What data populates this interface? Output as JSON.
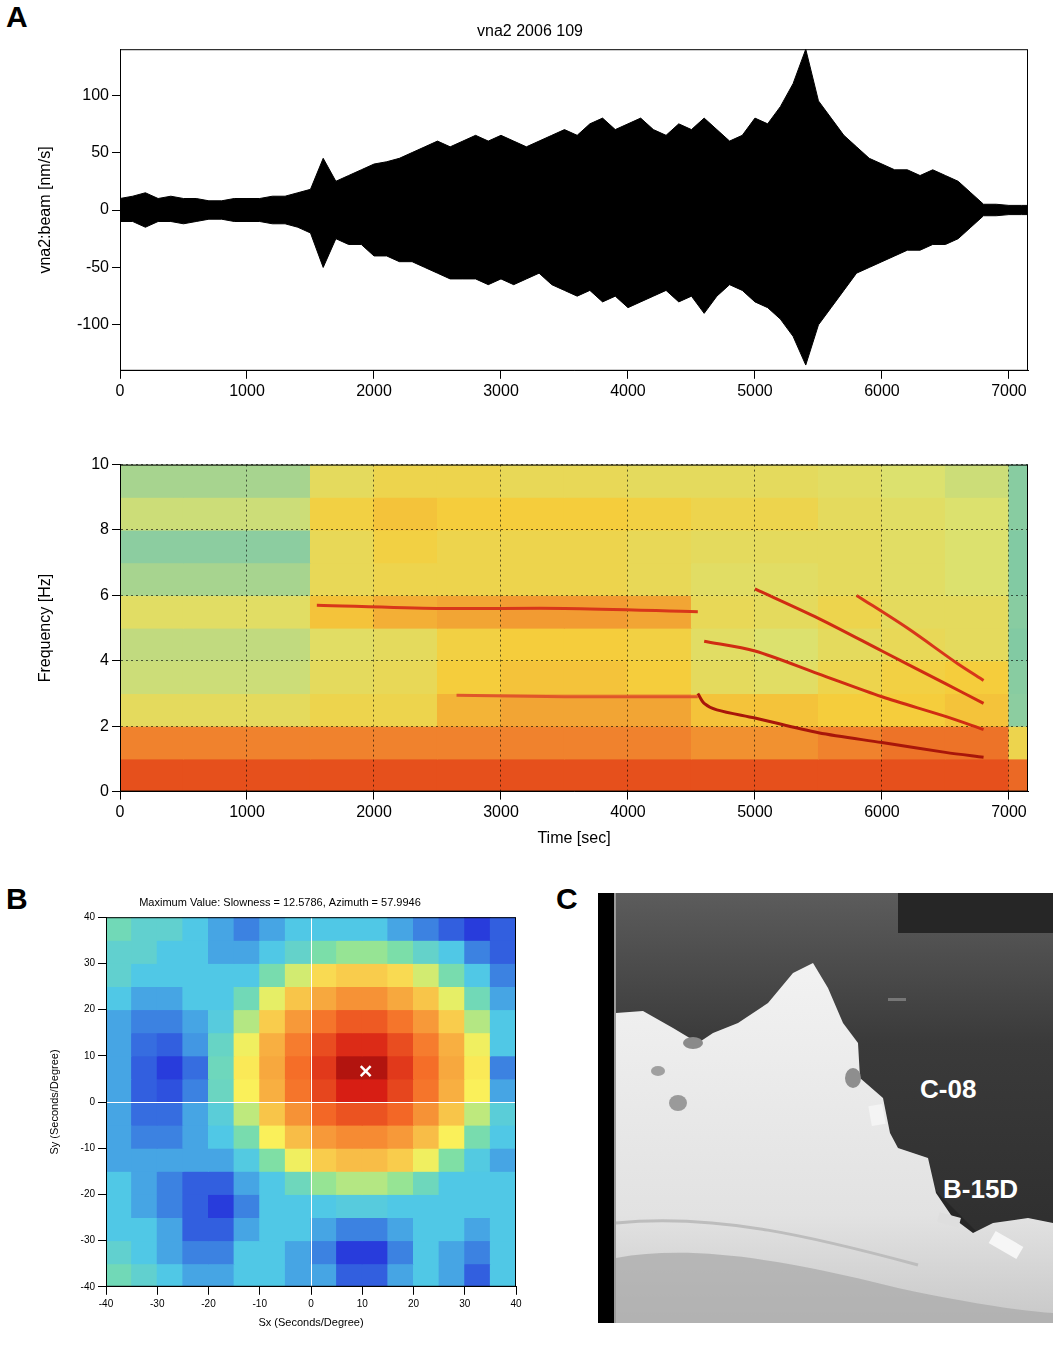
{
  "panel_labels": [
    "A",
    "B",
    "C"
  ],
  "chart_data": [
    {
      "type": "envelope",
      "title": "vna2 2006 109",
      "y_label": "vna2:beam [nm/s]",
      "x": [
        0,
        100,
        200,
        300,
        400,
        500,
        600,
        700,
        800,
        900,
        1000,
        1100,
        1200,
        1300,
        1400,
        1500,
        1600,
        1700,
        1800,
        1900,
        2000,
        2100,
        2200,
        2300,
        2400,
        2500,
        2600,
        2700,
        2800,
        2900,
        3000,
        3100,
        3200,
        3300,
        3400,
        3500,
        3600,
        3700,
        3800,
        3900,
        4000,
        4100,
        4200,
        4300,
        4400,
        4500,
        4600,
        4700,
        4800,
        4900,
        5000,
        5100,
        5200,
        5300,
        5400,
        5500,
        5600,
        5700,
        5800,
        5900,
        6000,
        6100,
        6200,
        6300,
        6400,
        6500,
        6600,
        6700,
        6800,
        6900,
        7000,
        7100,
        7150
      ],
      "series": [
        {
          "color": "#000000",
          "values": [
            10,
            12,
            15,
            10,
            12,
            10,
            10,
            8,
            8,
            10,
            10,
            10,
            12,
            12,
            15,
            18,
            45,
            25,
            30,
            35,
            40,
            42,
            45,
            50,
            55,
            60,
            55,
            60,
            65,
            60,
            65,
            60,
            55,
            60,
            65,
            70,
            65,
            75,
            80,
            70,
            75,
            80,
            70,
            65,
            75,
            70,
            80,
            70,
            60,
            65,
            80,
            75,
            90,
            110,
            140,
            95,
            80,
            65,
            55,
            45,
            40,
            35,
            35,
            30,
            35,
            30,
            25,
            15,
            5,
            5,
            4,
            4,
            4
          ]
        },
        {
          "color": "#000000",
          "values": [
            -10,
            -10,
            -15,
            -10,
            -10,
            -12,
            -10,
            -8,
            -8,
            -10,
            -10,
            -10,
            -12,
            -12,
            -15,
            -20,
            -50,
            -25,
            -30,
            -30,
            -40,
            -40,
            -45,
            -45,
            -50,
            -55,
            -60,
            -60,
            -60,
            -65,
            -60,
            -65,
            -60,
            -55,
            -65,
            -70,
            -75,
            -70,
            -80,
            -75,
            -85,
            -80,
            -75,
            -70,
            -80,
            -75,
            -90,
            -75,
            -65,
            -70,
            -80,
            -85,
            -95,
            -110,
            -135,
            -100,
            -85,
            -70,
            -55,
            -50,
            -45,
            -40,
            -35,
            -35,
            -30,
            -30,
            -25,
            -15,
            -5,
            -5,
            -4,
            -4,
            -4
          ]
        }
      ],
      "xlim": [
        0,
        7150
      ],
      "xticks": [
        0,
        1000,
        2000,
        3000,
        4000,
        5000,
        6000,
        7000
      ],
      "ylim": [
        -140,
        140
      ],
      "yticks": [
        -100,
        -50,
        0,
        50,
        100
      ],
      "grid": false
    },
    {
      "type": "heatmap",
      "x_label": "Time [sec]",
      "y_label": "Frequency [Hz]",
      "x_bins": [
        0,
        500,
        1000,
        1500,
        2000,
        2500,
        3000,
        3500,
        4000,
        4500,
        5000,
        5500,
        6000,
        6500,
        7000,
        7150
      ],
      "y_bins": [
        0,
        1,
        2,
        3,
        4,
        5,
        6,
        7,
        8,
        9,
        10
      ],
      "z": [
        [
          0.85,
          0.85,
          0.85,
          0.85,
          0.85,
          0.85,
          0.85,
          0.85,
          0.85,
          0.85,
          0.85,
          0.85,
          0.85,
          0.85,
          0.8
        ],
        [
          0.75,
          0.75,
          0.75,
          0.75,
          0.75,
          0.75,
          0.75,
          0.75,
          0.75,
          0.72,
          0.72,
          0.75,
          0.78,
          0.78,
          0.55
        ],
        [
          0.5,
          0.5,
          0.5,
          0.55,
          0.55,
          0.65,
          0.68,
          0.68,
          0.68,
          0.62,
          0.62,
          0.6,
          0.6,
          0.62,
          0.3
        ],
        [
          0.42,
          0.42,
          0.42,
          0.5,
          0.52,
          0.6,
          0.62,
          0.62,
          0.6,
          0.5,
          0.48,
          0.55,
          0.58,
          0.6,
          0.28
        ],
        [
          0.4,
          0.4,
          0.4,
          0.48,
          0.5,
          0.58,
          0.6,
          0.6,
          0.58,
          0.48,
          0.45,
          0.5,
          0.52,
          0.5,
          0.25
        ],
        [
          0.48,
          0.48,
          0.48,
          0.62,
          0.66,
          0.68,
          0.7,
          0.7,
          0.68,
          0.52,
          0.5,
          0.55,
          0.5,
          0.5,
          0.28
        ],
        [
          0.35,
          0.35,
          0.35,
          0.52,
          0.55,
          0.55,
          0.55,
          0.55,
          0.52,
          0.48,
          0.48,
          0.5,
          0.48,
          0.45,
          0.25
        ],
        [
          0.3,
          0.3,
          0.3,
          0.52,
          0.58,
          0.55,
          0.55,
          0.55,
          0.52,
          0.5,
          0.5,
          0.5,
          0.48,
          0.45,
          0.25
        ],
        [
          0.42,
          0.42,
          0.42,
          0.58,
          0.62,
          0.6,
          0.6,
          0.6,
          0.58,
          0.55,
          0.55,
          0.5,
          0.48,
          0.45,
          0.28
        ],
        [
          0.35,
          0.35,
          0.35,
          0.5,
          0.55,
          0.55,
          0.52,
          0.52,
          0.5,
          0.5,
          0.5,
          0.48,
          0.45,
          0.42,
          0.28
        ]
      ],
      "zlim": [
        0,
        1
      ],
      "series": [
        {
          "color": "#d8361a",
          "x": [
            1550,
            2500,
            3500,
            4550
          ],
          "values": [
            5.7,
            5.6,
            5.6,
            5.5
          ]
        },
        {
          "color": "#e0562a",
          "x": [
            2650,
            3500,
            4550
          ],
          "values": [
            2.95,
            2.9,
            2.9
          ]
        },
        {
          "color": "#a8160a",
          "x": [
            4550,
            4600,
            4700,
            5000,
            5500,
            6000,
            6500,
            6800
          ],
          "values": [
            3.0,
            2.7,
            2.5,
            2.25,
            1.8,
            1.5,
            1.2,
            1.05
          ]
        },
        {
          "color": "#d02c12",
          "x": [
            4600,
            5000,
            5500,
            6000,
            6500,
            6800
          ],
          "values": [
            4.6,
            4.3,
            3.6,
            2.9,
            2.3,
            1.9
          ]
        },
        {
          "color": "#d02c12",
          "x": [
            5000,
            5500,
            6000,
            6500,
            6800
          ],
          "values": [
            6.2,
            5.3,
            4.3,
            3.3,
            2.7
          ]
        },
        {
          "color": "#d8361a",
          "x": [
            5800,
            6200,
            6600,
            6800
          ],
          "values": [
            6.0,
            5.0,
            3.9,
            3.4
          ]
        }
      ],
      "xlim": [
        0,
        7150
      ],
      "xticks": [
        0,
        1000,
        2000,
        3000,
        4000,
        5000,
        6000,
        7000
      ],
      "ylim": [
        0,
        10
      ],
      "yticks": [
        0,
        2,
        4,
        6,
        8,
        10
      ],
      "grid": true
    },
    {
      "type": "heatmap",
      "title": "Maximum Value: Slowness = 12.5786, Azimuth = 57.9946",
      "x_label": "Sx (Seconds/Degree)",
      "y_label": "Sy (Seconds/Degree)",
      "x_bins": [
        -40,
        -35,
        -30,
        -25,
        -20,
        -15,
        -10,
        -5,
        0,
        5,
        10,
        15,
        20,
        25,
        30,
        35,
        40
      ],
      "y_bins": [
        -40,
        -35,
        -30,
        -25,
        -20,
        -15,
        -10,
        -5,
        0,
        5,
        10,
        15,
        20,
        25,
        30,
        35,
        40
      ],
      "z": [
        [
          0.45,
          0.4,
          0.35,
          0.3,
          0.3,
          0.35,
          0.35,
          0.3,
          0.3,
          0.2,
          0.2,
          0.3,
          0.35,
          0.3,
          0.2,
          0.35
        ],
        [
          0.4,
          0.35,
          0.3,
          0.25,
          0.25,
          0.35,
          0.35,
          0.3,
          0.25,
          0.15,
          0.15,
          0.25,
          0.35,
          0.3,
          0.25,
          0.35
        ],
        [
          0.35,
          0.35,
          0.3,
          0.2,
          0.2,
          0.3,
          0.35,
          0.35,
          0.3,
          0.25,
          0.25,
          0.3,
          0.35,
          0.35,
          0.3,
          0.35
        ],
        [
          0.35,
          0.3,
          0.25,
          0.2,
          0.15,
          0.25,
          0.35,
          0.35,
          0.35,
          0.37,
          0.37,
          0.35,
          0.35,
          0.35,
          0.35,
          0.35
        ],
        [
          0.35,
          0.3,
          0.25,
          0.2,
          0.2,
          0.3,
          0.35,
          0.44,
          0.52,
          0.55,
          0.55,
          0.52,
          0.44,
          0.35,
          0.35,
          0.35
        ],
        [
          0.3,
          0.3,
          0.3,
          0.3,
          0.3,
          0.36,
          0.49,
          0.61,
          0.67,
          0.69,
          0.69,
          0.67,
          0.61,
          0.49,
          0.36,
          0.3
        ],
        [
          0.3,
          0.25,
          0.25,
          0.3,
          0.35,
          0.47,
          0.62,
          0.69,
          0.74,
          0.76,
          0.76,
          0.74,
          0.69,
          0.62,
          0.47,
          0.35
        ],
        [
          0.3,
          0.22,
          0.22,
          0.3,
          0.38,
          0.56,
          0.68,
          0.75,
          0.81,
          0.84,
          0.84,
          0.81,
          0.75,
          0.68,
          0.56,
          0.38
        ],
        [
          0.3,
          0.2,
          0.18,
          0.25,
          0.43,
          0.62,
          0.71,
          0.79,
          0.86,
          0.92,
          0.92,
          0.86,
          0.79,
          0.71,
          0.62,
          0.3
        ],
        [
          0.3,
          0.2,
          0.15,
          0.22,
          0.44,
          0.63,
          0.72,
          0.8,
          0.88,
          0.96,
          0.96,
          0.88,
          0.8,
          0.72,
          0.63,
          0.25
        ],
        [
          0.3,
          0.22,
          0.2,
          0.28,
          0.42,
          0.61,
          0.71,
          0.78,
          0.85,
          0.9,
          0.9,
          0.85,
          0.78,
          0.71,
          0.61,
          0.35
        ],
        [
          0.3,
          0.25,
          0.25,
          0.3,
          0.37,
          0.55,
          0.67,
          0.74,
          0.79,
          0.83,
          0.83,
          0.79,
          0.74,
          0.67,
          0.55,
          0.35
        ],
        [
          0.35,
          0.3,
          0.3,
          0.35,
          0.35,
          0.45,
          0.6,
          0.68,
          0.72,
          0.75,
          0.75,
          0.72,
          0.68,
          0.6,
          0.45,
          0.3
        ],
        [
          0.4,
          0.35,
          0.35,
          0.35,
          0.35,
          0.35,
          0.47,
          0.58,
          0.65,
          0.67,
          0.67,
          0.65,
          0.58,
          0.47,
          0.35,
          0.25
        ],
        [
          0.4,
          0.4,
          0.35,
          0.35,
          0.3,
          0.3,
          0.35,
          0.41,
          0.48,
          0.52,
          0.52,
          0.48,
          0.41,
          0.35,
          0.25,
          0.2
        ],
        [
          0.45,
          0.4,
          0.4,
          0.35,
          0.3,
          0.25,
          0.3,
          0.35,
          0.35,
          0.35,
          0.35,
          0.3,
          0.25,
          0.2,
          0.15,
          0.2
        ]
      ],
      "zlim": [
        0,
        1
      ],
      "series": [
        {
          "color": "#ffffff",
          "marker": "x",
          "x": [
            10.67
          ],
          "values": [
            6.67
          ]
        }
      ],
      "xlim": [
        -40,
        40
      ],
      "xticks": [
        -40,
        -30,
        -20,
        -10,
        0,
        10,
        20,
        30,
        40
      ],
      "ylim": [
        -40,
        40
      ],
      "yticks": [
        -40,
        -30,
        -20,
        -10,
        0,
        10,
        20,
        30,
        40
      ],
      "grid": false
    }
  ],
  "image_panel": {
    "labels": [
      "C-08",
      "B-15D"
    ]
  }
}
